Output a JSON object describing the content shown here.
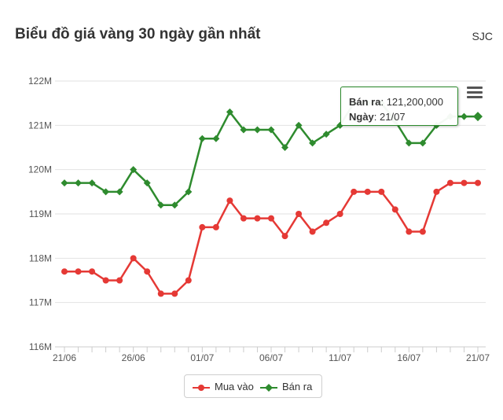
{
  "header": {
    "title": "Biểu đồ giá vàng 30 ngày gần nhất",
    "brand": "SJC"
  },
  "tooltip": {
    "series_label": "Bán ra",
    "value_text": "121,200,000",
    "date_label": "Ngày",
    "date_text": "21/07"
  },
  "chart_data": {
    "type": "line",
    "title": "Biểu đồ giá vàng 30 ngày gần nhất",
    "xlabel": "",
    "ylabel": "",
    "ylim": [
      116,
      122
    ],
    "y_unit": "M",
    "yticks": [
      "116M",
      "117M",
      "118M",
      "119M",
      "120M",
      "121M",
      "122M"
    ],
    "x": [
      "21/06",
      "22/06",
      "23/06",
      "24/06",
      "25/06",
      "26/06",
      "27/06",
      "28/06",
      "29/06",
      "30/06",
      "01/07",
      "02/07",
      "03/07",
      "04/07",
      "05/07",
      "06/07",
      "07/07",
      "08/07",
      "09/07",
      "10/07",
      "11/07",
      "12/07",
      "13/07",
      "14/07",
      "15/07",
      "16/07",
      "17/07",
      "18/07",
      "19/07",
      "20/07",
      "21/07"
    ],
    "xtick_labels": [
      "21/06",
      "26/06",
      "01/07",
      "06/07",
      "11/07",
      "16/07",
      "21/07"
    ],
    "grid": true,
    "legend_position": "bottom-center",
    "series": [
      {
        "name": "Mua vào",
        "color": "#e53935",
        "marker": "circle",
        "values": [
          117.7,
          117.7,
          117.7,
          117.5,
          117.5,
          118.0,
          117.7,
          117.2,
          117.2,
          117.5,
          118.7,
          118.7,
          119.3,
          118.9,
          118.9,
          118.9,
          118.5,
          119.0,
          118.6,
          118.8,
          119.0,
          119.5,
          119.5,
          119.5,
          119.1,
          118.6,
          118.6,
          119.5,
          119.7,
          119.7,
          119.7
        ]
      },
      {
        "name": "Bán ra",
        "color": "#2e8b2e",
        "marker": "diamond",
        "values": [
          119.7,
          119.7,
          119.7,
          119.5,
          119.5,
          120.0,
          119.7,
          119.2,
          119.2,
          119.5,
          120.7,
          120.7,
          121.3,
          120.9,
          120.9,
          120.9,
          120.5,
          121.0,
          120.6,
          120.8,
          121.0,
          121.5,
          121.5,
          121.5,
          121.1,
          120.6,
          120.6,
          121.0,
          121.2,
          121.2,
          121.2
        ]
      }
    ]
  }
}
